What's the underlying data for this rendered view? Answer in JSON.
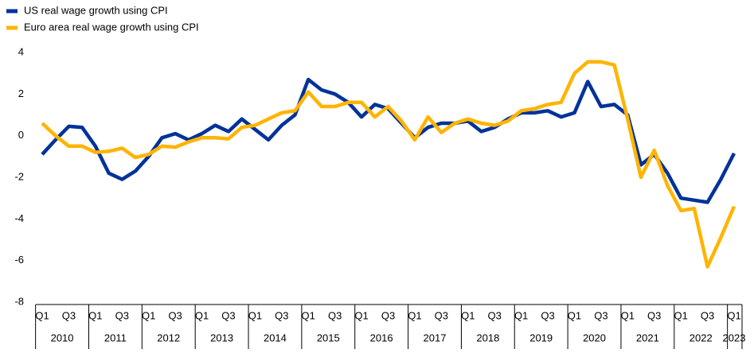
{
  "chart_data": {
    "type": "line",
    "categories": [
      "Q1",
      null,
      "Q3",
      null,
      "Q1",
      null,
      "Q3",
      null,
      "Q1",
      null,
      "Q3",
      null,
      "Q1",
      null,
      "Q3",
      null,
      "Q1",
      null,
      "Q3",
      null,
      "Q1",
      null,
      "Q3",
      null,
      "Q1",
      null,
      "Q3",
      null,
      "Q1",
      null,
      "Q3",
      null,
      "Q1",
      null,
      "Q3",
      null,
      "Q1",
      null,
      "Q3",
      null,
      "Q1",
      null,
      "Q3",
      null,
      "Q1",
      null,
      "Q3",
      null,
      "Q1",
      null,
      "Q3",
      null,
      "Q1"
    ],
    "years": [
      "2010",
      "2011",
      "2012",
      "2013",
      "2014",
      "2015",
      "2016",
      "2017",
      "2018",
      "2019",
      "2020",
      "2021",
      "2022",
      "2023"
    ],
    "series": [
      {
        "name": "US real wage growth using CPI",
        "color": "#003299",
        "values": [
          -0.9,
          -0.2,
          0.45,
          0.4,
          -0.5,
          -1.8,
          -2.1,
          -1.7,
          -1.0,
          -0.1,
          0.1,
          -0.2,
          0.1,
          0.5,
          0.2,
          0.8,
          0.3,
          -0.2,
          0.5,
          1.0,
          2.7,
          2.2,
          2.0,
          1.6,
          0.9,
          1.5,
          1.3,
          0.6,
          -0.1,
          0.4,
          0.6,
          0.6,
          0.7,
          0.2,
          0.4,
          0.8,
          1.1,
          1.1,
          1.2,
          0.9,
          1.1,
          2.6,
          1.4,
          1.5,
          1.0,
          -1.4,
          -0.9,
          -1.8,
          -3.0,
          -3.1,
          -3.2,
          -2.1,
          -0.85
        ]
      },
      {
        "name": "Euro area real wage growth using CPI",
        "color": "#ffb400",
        "values": [
          0.6,
          0.0,
          -0.5,
          -0.5,
          -0.8,
          -0.75,
          -0.6,
          -1.05,
          -0.9,
          -0.5,
          -0.55,
          -0.3,
          -0.1,
          -0.1,
          -0.15,
          0.4,
          0.5,
          0.8,
          1.1,
          1.2,
          2.1,
          1.4,
          1.4,
          1.6,
          1.6,
          0.9,
          1.4,
          0.7,
          -0.2,
          0.9,
          0.15,
          0.6,
          0.8,
          0.6,
          0.5,
          0.7,
          1.2,
          1.3,
          1.5,
          1.6,
          3.0,
          3.55,
          3.55,
          3.4,
          0.8,
          -2.0,
          -0.7,
          -2.4,
          -3.6,
          -3.5,
          -6.3,
          -4.9,
          -3.4
        ]
      }
    ],
    "ylim": [
      -8,
      4
    ],
    "yticks": [
      -8,
      -6,
      -4,
      -2,
      0,
      2,
      4
    ]
  }
}
